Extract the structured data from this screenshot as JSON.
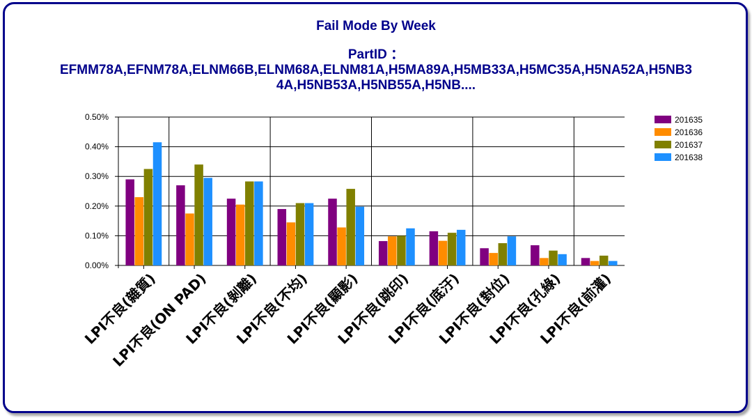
{
  "chart_data": {
    "type": "bar",
    "title": "Fail Mode By Week",
    "subtitle_lines": [
      "PartID  ：",
      "EFMM78A,EFNM78A,ELNM66B,ELNM68A,ELNM81A,H5MA89A,H5MB33A,H5MC35A,H5NA52A,H5NB3",
      "4A,H5NB53A,H5NB55A,H5NB...."
    ],
    "categories": [
      "LPI不良(雜質)",
      "LPI不良(ON PAD)",
      "LPI不良(剝離)",
      "LPI不良(不均)",
      "LPI不良(顯影)",
      "LPI不良(跳印)",
      "LPI不良(底汙)",
      "LPI不良(對位)",
      "LPI不良(孔綠)",
      "LPI不良(前灌)"
    ],
    "series": [
      {
        "name": "201635",
        "color": "#800080",
        "values": [
          0.29,
          0.27,
          0.225,
          0.19,
          0.225,
          0.082,
          0.115,
          0.058,
          0.068,
          0.025
        ]
      },
      {
        "name": "201636",
        "color": "#ff8c00",
        "values": [
          0.23,
          0.175,
          0.205,
          0.145,
          0.128,
          0.098,
          0.083,
          0.042,
          0.025,
          0.015
        ]
      },
      {
        "name": "201637",
        "color": "#808000",
        "values": [
          0.325,
          0.34,
          0.283,
          0.21,
          0.258,
          0.1,
          0.11,
          0.075,
          0.05,
          0.033
        ]
      },
      {
        "name": "201638",
        "color": "#1e90ff",
        "values": [
          0.415,
          0.295,
          0.283,
          0.21,
          0.198,
          0.125,
          0.12,
          0.098,
          0.038,
          0.015
        ]
      }
    ],
    "ylim": [
      0,
      0.5
    ],
    "yticks": [
      "0.00%",
      "0.10%",
      "0.20%",
      "0.30%",
      "0.40%",
      "0.50%"
    ],
    "grid": true,
    "legend_position": "right"
  }
}
